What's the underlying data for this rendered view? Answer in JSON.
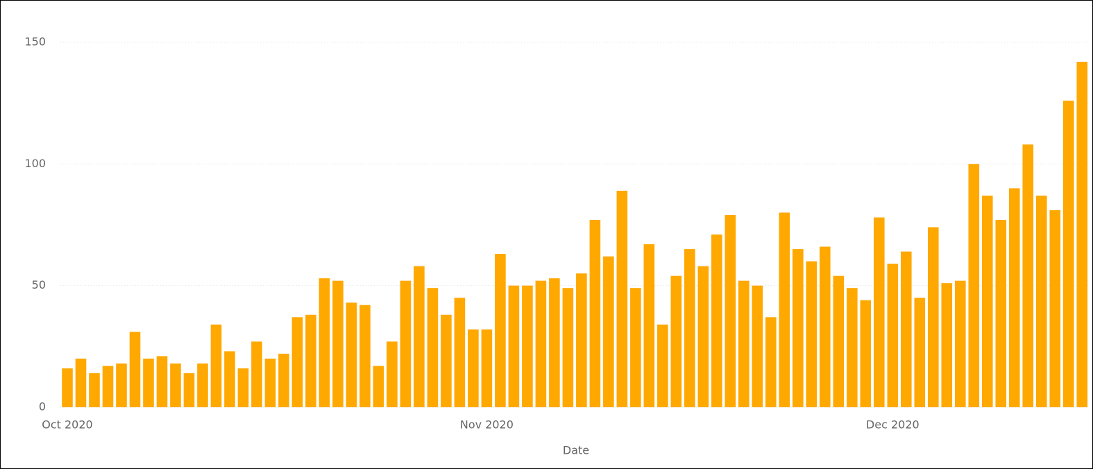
{
  "chart_data": {
    "type": "bar",
    "x_label": "Date",
    "categories": [
      "Oct 2020",
      null,
      null,
      null,
      null,
      null,
      null,
      null,
      null,
      null,
      null,
      null,
      null,
      null,
      null,
      null,
      null,
      null,
      null,
      null,
      null,
      null,
      null,
      null,
      null,
      null,
      null,
      null,
      null,
      null,
      null,
      "Nov 2020",
      null,
      null,
      null,
      null,
      null,
      null,
      null,
      null,
      null,
      null,
      null,
      null,
      null,
      null,
      null,
      null,
      null,
      null,
      null,
      null,
      null,
      null,
      null,
      null,
      null,
      null,
      null,
      null,
      null,
      "Dec 2020",
      null,
      null,
      null,
      null,
      null,
      null,
      null,
      null,
      null,
      null,
      null,
      null,
      null,
      null
    ],
    "values": [
      16,
      20,
      14,
      17,
      18,
      31,
      20,
      21,
      18,
      14,
      18,
      34,
      23,
      16,
      27,
      20,
      22,
      37,
      38,
      53,
      52,
      43,
      42,
      17,
      27,
      52,
      58,
      49,
      38,
      45,
      32,
      32,
      63,
      50,
      50,
      52,
      53,
      49,
      55,
      77,
      62,
      89,
      49,
      67,
      34,
      54,
      65,
      58,
      71,
      79,
      52,
      50,
      37,
      80,
      65,
      60,
      66,
      54,
      49,
      44,
      78,
      59,
      64,
      45,
      74,
      51,
      52,
      100,
      87,
      77,
      90,
      108,
      87,
      81,
      126,
      142
    ],
    "color": "#ffa800",
    "ylim": [
      0,
      150
    ],
    "yticks": [
      0,
      50,
      100,
      150
    ],
    "grid": true
  }
}
